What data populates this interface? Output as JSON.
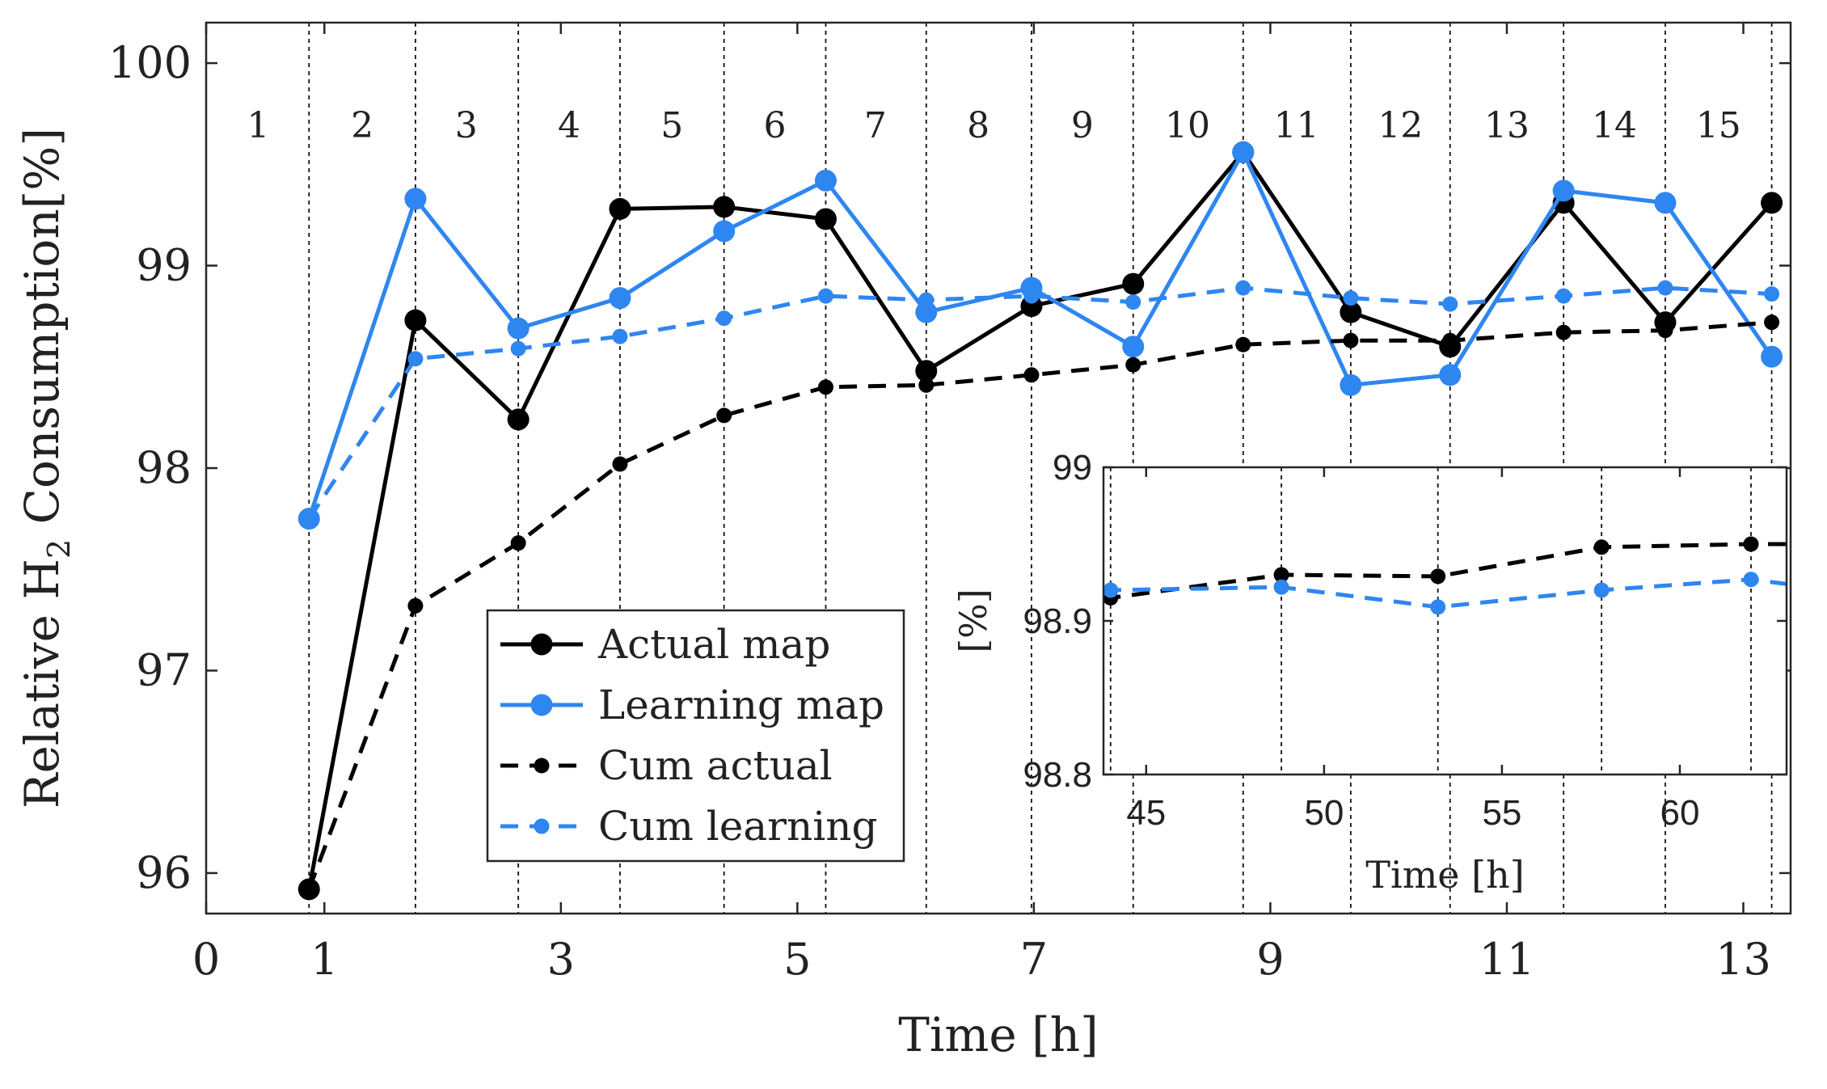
{
  "chart_data": [
    {
      "id": "main",
      "type": "line",
      "title": "",
      "xlabel": "Time [h]",
      "ylabel_prefix": "Relative H",
      "ylabel_sub": "2",
      "ylabel_suffix": " Consumption[%]",
      "xlim": [
        0,
        13.4
      ],
      "ylim": [
        95.8,
        100.2
      ],
      "xticks": [
        0,
        1,
        3,
        5,
        7,
        9,
        11,
        13
      ],
      "yticks": [
        96,
        97,
        98,
        99,
        100
      ],
      "segment_boundaries": [
        0.87,
        1.77,
        2.64,
        3.5,
        4.38,
        5.24,
        6.09,
        6.98,
        7.84,
        8.77,
        9.68,
        10.52,
        11.48,
        12.34,
        13.24
      ],
      "segment_labels": [
        "1",
        "2",
        "3",
        "4",
        "5",
        "6",
        "7",
        "8",
        "9",
        "10",
        "11",
        "12",
        "13",
        "14",
        "15"
      ],
      "segment_label_positions": [
        0.44,
        1.32,
        2.2,
        3.07,
        3.94,
        4.81,
        5.66,
        6.53,
        7.41,
        8.3,
        9.22,
        10.1,
        11.0,
        11.91,
        12.79
      ],
      "series": [
        {
          "name": "Actual map",
          "color": "#000000",
          "dash": "none",
          "marker": "large",
          "x": [
            0.87,
            1.77,
            2.64,
            3.5,
            4.38,
            5.24,
            6.09,
            6.98,
            7.84,
            8.77,
            9.68,
            10.52,
            11.48,
            12.34,
            13.24
          ],
          "y": [
            95.92,
            98.73,
            98.24,
            99.28,
            99.29,
            99.23,
            98.48,
            98.8,
            98.91,
            99.56,
            98.77,
            98.6,
            99.31,
            98.72,
            99.31
          ]
        },
        {
          "name": "Learning map",
          "color": "#2e86f0",
          "dash": "none",
          "marker": "large",
          "x": [
            0.87,
            1.77,
            2.64,
            3.5,
            4.38,
            5.24,
            6.09,
            6.98,
            7.84,
            8.77,
            9.68,
            10.52,
            11.48,
            12.34,
            13.24
          ],
          "y": [
            97.75,
            99.33,
            98.69,
            98.84,
            99.17,
            99.42,
            98.77,
            98.89,
            98.6,
            99.56,
            98.41,
            98.46,
            99.37,
            99.31,
            98.55
          ]
        },
        {
          "name": "Cum actual",
          "color": "#000000",
          "dash": "dashed",
          "marker": "small",
          "x": [
            0.87,
            1.77,
            2.64,
            3.5,
            4.38,
            5.24,
            6.09,
            6.98,
            7.84,
            8.77,
            9.68,
            10.52,
            11.48,
            12.34,
            13.24
          ],
          "y": [
            95.92,
            97.32,
            97.63,
            98.02,
            98.26,
            98.4,
            98.41,
            98.46,
            98.51,
            98.61,
            98.63,
            98.63,
            98.67,
            98.68,
            98.72
          ]
        },
        {
          "name": "Cum learning",
          "color": "#2e86f0",
          "dash": "dashed",
          "marker": "small",
          "x": [
            0.87,
            1.77,
            2.64,
            3.5,
            4.38,
            5.24,
            6.09,
            6.98,
            7.84,
            8.77,
            9.68,
            10.52,
            11.48,
            12.34,
            13.24
          ],
          "y": [
            97.75,
            98.54,
            98.59,
            98.65,
            98.74,
            98.85,
            98.83,
            98.85,
            98.82,
            98.89,
            98.84,
            98.81,
            98.85,
            98.89,
            98.86
          ]
        }
      ],
      "legend": {
        "position": "lower-center",
        "entries": [
          "Actual map",
          "Learning map",
          "Cum actual",
          "Cum learning"
        ]
      }
    },
    {
      "id": "inset",
      "type": "line",
      "xlabel": "Time [h]",
      "ylabel": "[%]",
      "xlim": [
        43.8,
        63.0
      ],
      "ylim": [
        98.8,
        99.0
      ],
      "xticks": [
        45,
        50,
        55,
        60
      ],
      "yticks": [
        98.8,
        98.9,
        99
      ],
      "ytick_labels": [
        "98.8",
        "98.9",
        "99"
      ],
      "segment_boundaries": [
        44.0,
        48.8,
        53.2,
        57.8,
        62.0
      ],
      "series": [
        {
          "name": "Cum actual",
          "color": "#000000",
          "dash": "dashed",
          "marker": "small",
          "x": [
            43.8,
            44.0,
            48.8,
            53.2,
            57.8,
            62.0,
            63.0
          ],
          "y": [
            98.913,
            98.915,
            98.93,
            98.929,
            98.948,
            98.95,
            98.95
          ]
        },
        {
          "name": "Cum learning",
          "color": "#2e86f0",
          "dash": "dashed",
          "marker": "small",
          "x": [
            43.8,
            44.0,
            48.8,
            53.2,
            57.8,
            62.0,
            63.0
          ],
          "y": [
            98.92,
            98.92,
            98.922,
            98.909,
            98.92,
            98.927,
            98.924
          ]
        }
      ]
    }
  ]
}
